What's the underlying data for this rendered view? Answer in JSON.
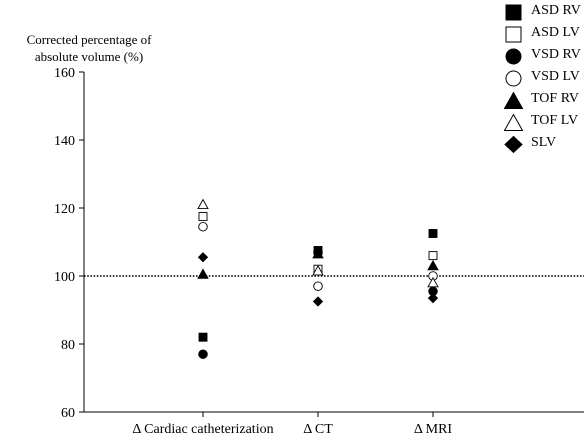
{
  "chart_data": {
    "type": "scatter",
    "title": "",
    "ylabel_lines": [
      "Corrected percentage of",
      "absolute volume (%)"
    ],
    "xlabel": "",
    "categories": [
      "Δ Cardiac catheterization",
      "Δ CT",
      "Δ MRI"
    ],
    "ylim": [
      60,
      160
    ],
    "yticks": [
      60,
      80,
      100,
      120,
      140,
      160
    ],
    "reference_line": 100,
    "grid": false,
    "legend_position": "top-right",
    "series": [
      {
        "name": "ASD RV",
        "marker": "filled-square",
        "values": [
          82,
          107.5,
          112.5
        ]
      },
      {
        "name": "ASD LV",
        "marker": "open-square",
        "values": [
          117.5,
          102,
          106
        ]
      },
      {
        "name": "VSD RV",
        "marker": "filled-circle",
        "values": [
          77,
          107,
          95.5
        ]
      },
      {
        "name": "VSD LV",
        "marker": "open-circle",
        "values": [
          114.5,
          97,
          100
        ]
      },
      {
        "name": "TOF RV",
        "marker": "filled-triangle",
        "values": [
          100.5,
          106.5,
          103
        ]
      },
      {
        "name": "TOF LV",
        "marker": "open-triangle",
        "values": [
          121,
          101.5,
          98
        ]
      },
      {
        "name": "SLV",
        "marker": "filled-diamond",
        "values": [
          105.5,
          92.5,
          93.5
        ]
      }
    ]
  }
}
